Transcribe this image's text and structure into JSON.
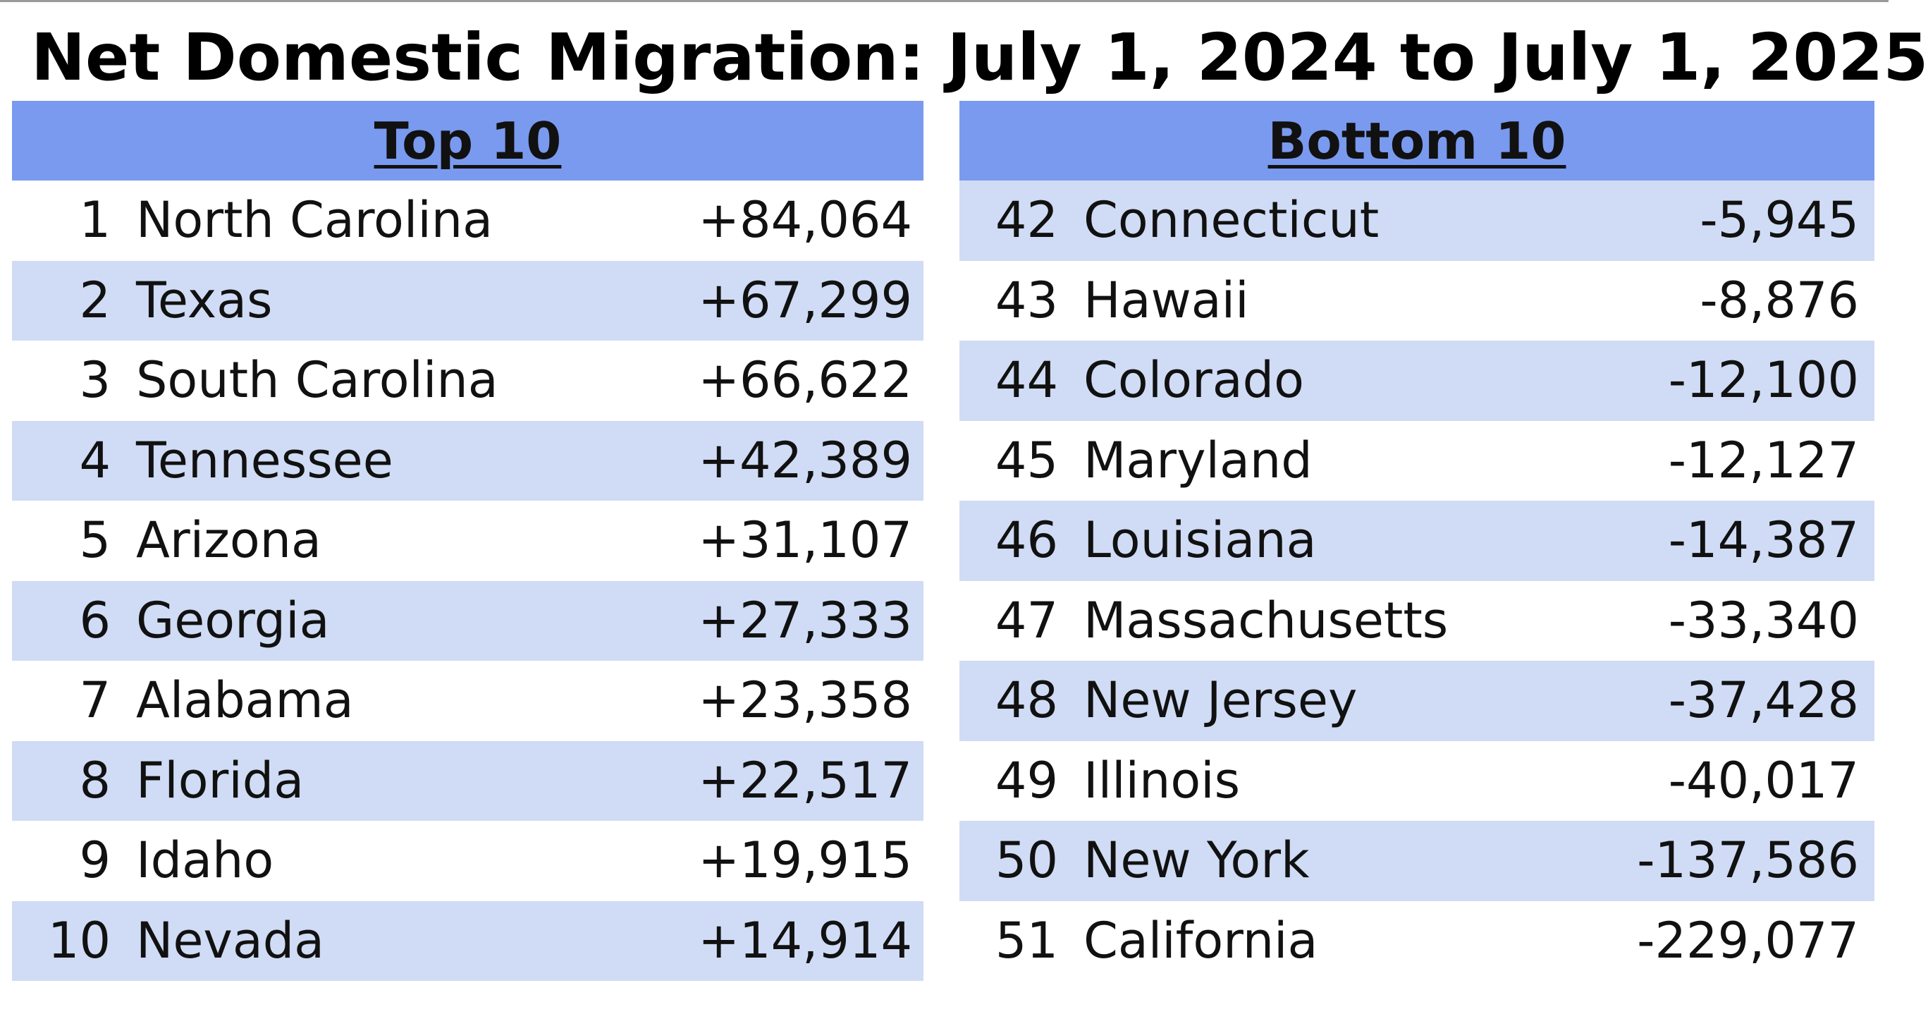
{
  "title": "Net Domestic Migration: July 1, 2024 to July 1, 2025",
  "colors": {
    "header_fill": "#7a9af0",
    "band_fill": "#d0dcf5",
    "background": "#ffffff",
    "text": "#111111"
  },
  "top10": {
    "header": "Top 10",
    "rows": [
      {
        "rank": "1",
        "state": "North Carolina",
        "value": "+84,064"
      },
      {
        "rank": "2",
        "state": "Texas",
        "value": "+67,299"
      },
      {
        "rank": "3",
        "state": "South Carolina",
        "value": "+66,622"
      },
      {
        "rank": "4",
        "state": "Tennessee",
        "value": "+42,389"
      },
      {
        "rank": "5",
        "state": "Arizona",
        "value": "+31,107"
      },
      {
        "rank": "6",
        "state": "Georgia",
        "value": "+27,333"
      },
      {
        "rank": "7",
        "state": "Alabama",
        "value": "+23,358"
      },
      {
        "rank": "8",
        "state": "Florida",
        "value": "+22,517"
      },
      {
        "rank": "9",
        "state": "Idaho",
        "value": "+19,915"
      },
      {
        "rank": "10",
        "state": "Nevada",
        "value": "+14,914"
      }
    ]
  },
  "bottom10": {
    "header": "Bottom 10",
    "rows": [
      {
        "rank": "42",
        "state": "Connecticut",
        "value": "-5,945"
      },
      {
        "rank": "43",
        "state": "Hawaii",
        "value": "-8,876"
      },
      {
        "rank": "44",
        "state": "Colorado",
        "value": "-12,100"
      },
      {
        "rank": "45",
        "state": "Maryland",
        "value": "-12,127"
      },
      {
        "rank": "46",
        "state": "Louisiana",
        "value": "-14,387"
      },
      {
        "rank": "47",
        "state": "Massachusetts",
        "value": "-33,340"
      },
      {
        "rank": "48",
        "state": "New Jersey",
        "value": "-37,428"
      },
      {
        "rank": "49",
        "state": "Illinois",
        "value": "-40,017"
      },
      {
        "rank": "50",
        "state": "New York",
        "value": "-137,586"
      },
      {
        "rank": "51",
        "state": "California",
        "value": "-229,077"
      }
    ]
  }
}
